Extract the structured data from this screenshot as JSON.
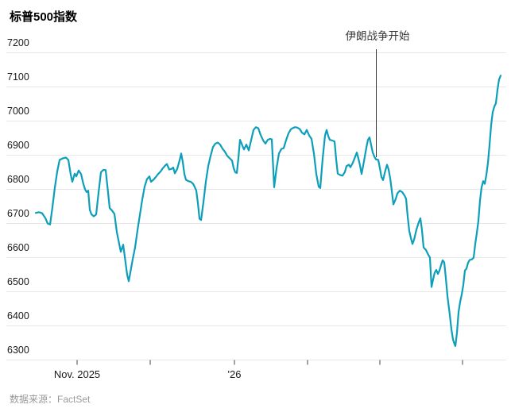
{
  "title": "标普500指数",
  "annotation": {
    "label": "伊朗战争开始"
  },
  "source": "数据来源：FactSet",
  "colors": {
    "line": "#0d9fba",
    "grid": "#e7e7e7",
    "tick": "#444444",
    "axis_label": "#1a1a1a",
    "annotation_line": "#333333",
    "annotation_text": "#333333",
    "title_text": "#000000",
    "source_text": "#999999",
    "background": "#ffffff"
  },
  "chart_data": {
    "type": "line",
    "title": "标普500指数",
    "xlabel": "",
    "ylabel": "",
    "ylim": [
      6300,
      7200
    ],
    "grid": true,
    "y_ticks": [
      7200,
      7100,
      7000,
      6900,
      6800,
      6700,
      6600,
      6500,
      6400,
      6300
    ],
    "x_ticks": [
      {
        "label": "Nov. 2025",
        "x": 97
      },
      {
        "label": "",
        "x": 189
      },
      {
        "label": "'26",
        "x": 295
      },
      {
        "label": "",
        "x": 387
      },
      {
        "label": "",
        "x": 478
      },
      {
        "label": "",
        "x": 582
      }
    ],
    "annotation": {
      "label": "伊朗战争开始",
      "x": 473.5,
      "line_top": 62,
      "line_bottom": 198
    },
    "points": [
      [
        45,
        6731
      ],
      [
        49,
        6733
      ],
      [
        53,
        6730
      ],
      [
        57,
        6716
      ],
      [
        60,
        6700
      ],
      [
        63,
        6697
      ],
      [
        66,
        6748
      ],
      [
        69,
        6805
      ],
      [
        72,
        6852
      ],
      [
        75,
        6886
      ],
      [
        79,
        6891
      ],
      [
        83,
        6893
      ],
      [
        86,
        6886
      ],
      [
        89,
        6843
      ],
      [
        91,
        6822
      ],
      [
        94,
        6846
      ],
      [
        96,
        6838
      ],
      [
        99,
        6855
      ],
      [
        102,
        6845
      ],
      [
        105,
        6815
      ],
      [
        107,
        6800
      ],
      [
        109,
        6792
      ],
      [
        111,
        6796
      ],
      [
        113,
        6740
      ],
      [
        115,
        6727
      ],
      [
        118,
        6721
      ],
      [
        121,
        6726
      ],
      [
        124,
        6790
      ],
      [
        127,
        6850
      ],
      [
        130,
        6857
      ],
      [
        133,
        6856
      ],
      [
        136,
        6790
      ],
      [
        138,
        6745
      ],
      [
        141,
        6738
      ],
      [
        144,
        6728
      ],
      [
        147,
        6675
      ],
      [
        150,
        6640
      ],
      [
        152,
        6617
      ],
      [
        155,
        6638
      ],
      [
        158,
        6585
      ],
      [
        160,
        6550
      ],
      [
        162,
        6531
      ],
      [
        164,
        6556
      ],
      [
        167,
        6595
      ],
      [
        170,
        6630
      ],
      [
        173,
        6680
      ],
      [
        176,
        6725
      ],
      [
        179,
        6770
      ],
      [
        182,
        6808
      ],
      [
        185,
        6830
      ],
      [
        188,
        6838
      ],
      [
        190,
        6822
      ],
      [
        193,
        6828
      ],
      [
        196,
        6836
      ],
      [
        199,
        6845
      ],
      [
        202,
        6852
      ],
      [
        205,
        6862
      ],
      [
        208,
        6870
      ],
      [
        210,
        6874
      ],
      [
        213,
        6858
      ],
      [
        216,
        6860
      ],
      [
        218,
        6864
      ],
      [
        220,
        6847
      ],
      [
        223,
        6860
      ],
      [
        226,
        6885
      ],
      [
        228,
        6905
      ],
      [
        230,
        6880
      ],
      [
        232,
        6845
      ],
      [
        234,
        6828
      ],
      [
        237,
        6824
      ],
      [
        240,
        6822
      ],
      [
        243,
        6816
      ],
      [
        245,
        6807
      ],
      [
        247,
        6796
      ],
      [
        249,
        6760
      ],
      [
        251,
        6714
      ],
      [
        253,
        6710
      ],
      [
        256,
        6762
      ],
      [
        259,
        6822
      ],
      [
        262,
        6868
      ],
      [
        265,
        6898
      ],
      [
        268,
        6924
      ],
      [
        271,
        6934
      ],
      [
        274,
        6937
      ],
      [
        277,
        6931
      ],
      [
        280,
        6919
      ],
      [
        283,
        6910
      ],
      [
        286,
        6898
      ],
      [
        289,
        6891
      ],
      [
        292,
        6884
      ],
      [
        294,
        6862
      ],
      [
        296,
        6850
      ],
      [
        298,
        6848
      ],
      [
        300,
        6892
      ],
      [
        302,
        6945
      ],
      [
        305,
        6928
      ],
      [
        307,
        6917
      ],
      [
        310,
        6931
      ],
      [
        313,
        6914
      ],
      [
        316,
        6944
      ],
      [
        319,
        6974
      ],
      [
        322,
        6982
      ],
      [
        325,
        6979
      ],
      [
        328,
        6959
      ],
      [
        331,
        6944
      ],
      [
        334,
        6934
      ],
      [
        337,
        6945
      ],
      [
        340,
        6948
      ],
      [
        342,
        6946
      ],
      [
        345,
        6806
      ],
      [
        348,
        6862
      ],
      [
        351,
        6905
      ],
      [
        354,
        6918
      ],
      [
        357,
        6921
      ],
      [
        360,
        6944
      ],
      [
        363,
        6964
      ],
      [
        366,
        6976
      ],
      [
        369,
        6980
      ],
      [
        371,
        6982
      ],
      [
        374,
        6981
      ],
      [
        377,
        6977
      ],
      [
        380,
        6966
      ],
      [
        383,
        6961
      ],
      [
        386,
        6974
      ],
      [
        389,
        6958
      ],
      [
        392,
        6948
      ],
      [
        395,
        6905
      ],
      [
        398,
        6845
      ],
      [
        401,
        6808
      ],
      [
        403,
        6804
      ],
      [
        406,
        6890
      ],
      [
        409,
        6958
      ],
      [
        411,
        6974
      ],
      [
        413,
        6956
      ],
      [
        415,
        6945
      ],
      [
        418,
        6943
      ],
      [
        421,
        6940
      ],
      [
        423,
        6888
      ],
      [
        425,
        6846
      ],
      [
        428,
        6842
      ],
      [
        431,
        6840
      ],
      [
        434,
        6851
      ],
      [
        436,
        6868
      ],
      [
        439,
        6872
      ],
      [
        441,
        6865
      ],
      [
        444,
        6878
      ],
      [
        447,
        6896
      ],
      [
        449,
        6908
      ],
      [
        451,
        6890
      ],
      [
        453,
        6870
      ],
      [
        455,
        6845
      ],
      [
        458,
        6882
      ],
      [
        461,
        6922
      ],
      [
        463,
        6945
      ],
      [
        465,
        6952
      ],
      [
        467,
        6930
      ],
      [
        469,
        6908
      ],
      [
        471,
        6896
      ],
      [
        473,
        6888
      ],
      [
        476,
        6886
      ],
      [
        478,
        6862
      ],
      [
        480,
        6836
      ],
      [
        482,
        6827
      ],
      [
        485,
        6856
      ],
      [
        487,
        6872
      ],
      [
        489,
        6858
      ],
      [
        491,
        6832
      ],
      [
        493,
        6796
      ],
      [
        495,
        6756
      ],
      [
        498,
        6772
      ],
      [
        500,
        6788
      ],
      [
        503,
        6796
      ],
      [
        506,
        6792
      ],
      [
        509,
        6782
      ],
      [
        511,
        6772
      ],
      [
        513,
        6720
      ],
      [
        515,
        6678
      ],
      [
        517,
        6658
      ],
      [
        519,
        6640
      ],
      [
        521,
        6652
      ],
      [
        524,
        6682
      ],
      [
        527,
        6704
      ],
      [
        529,
        6715
      ],
      [
        531,
        6680
      ],
      [
        533,
        6630
      ],
      [
        536,
        6622
      ],
      [
        539,
        6608
      ],
      [
        541,
        6600
      ],
      [
        543,
        6514
      ],
      [
        545,
        6536
      ],
      [
        547,
        6556
      ],
      [
        549,
        6564
      ],
      [
        551,
        6552
      ],
      [
        553,
        6562
      ],
      [
        555,
        6578
      ],
      [
        557,
        6592
      ],
      [
        559,
        6586
      ],
      [
        561,
        6540
      ],
      [
        563,
        6488
      ],
      [
        566,
        6432
      ],
      [
        568,
        6390
      ],
      [
        570,
        6360
      ],
      [
        572,
        6346
      ],
      [
        573,
        6341
      ],
      [
        575,
        6380
      ],
      [
        577,
        6440
      ],
      [
        579,
        6470
      ],
      [
        581,
        6492
      ],
      [
        583,
        6520
      ],
      [
        585,
        6562
      ],
      [
        587,
        6568
      ],
      [
        589,
        6585
      ],
      [
        591,
        6593
      ],
      [
        594,
        6595
      ],
      [
        596,
        6600
      ],
      [
        598,
        6640
      ],
      [
        600,
        6672
      ],
      [
        602,
        6708
      ],
      [
        604,
        6768
      ],
      [
        606,
        6806
      ],
      [
        608,
        6824
      ],
      [
        610,
        6816
      ],
      [
        612,
        6842
      ],
      [
        614,
        6878
      ],
      [
        616,
        6930
      ],
      [
        618,
        6988
      ],
      [
        620,
        7026
      ],
      [
        622,
        7042
      ],
      [
        624,
        7052
      ],
      [
        626,
        7092
      ],
      [
        628,
        7122
      ],
      [
        630,
        7133
      ]
    ]
  }
}
